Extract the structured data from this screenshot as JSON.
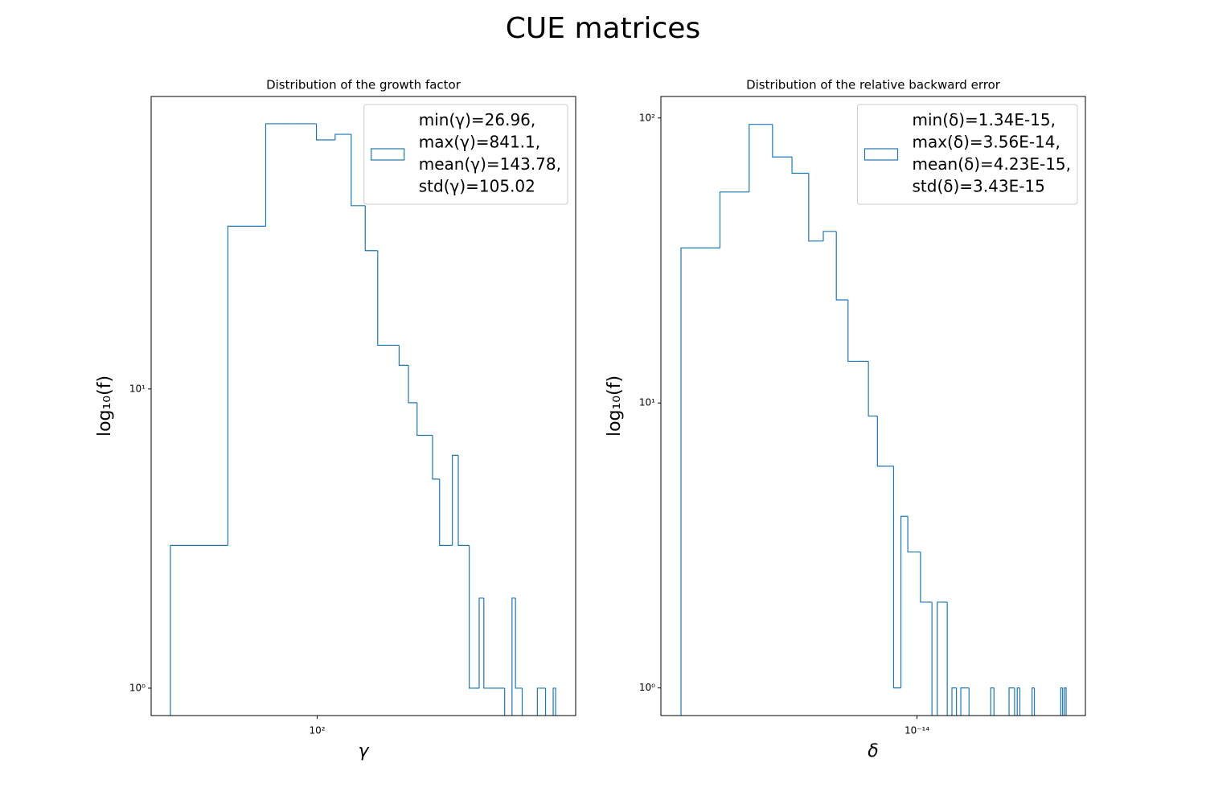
{
  "title": "CUE matrices",
  "chart_data": [
    {
      "type": "histogram",
      "title": "Distribution of the growth factor",
      "x_label": "γ",
      "y_label": "log₁₀(f)",
      "xscale": "log",
      "yscale": "log",
      "histtype": "step",
      "legend": "upper right",
      "grid": false,
      "xlim": [
        22.7,
        1006
      ],
      "ylim": [
        0.81,
        95
      ],
      "xticks": [
        {
          "value": 100,
          "label": "10²"
        }
      ],
      "yticks": [
        {
          "value": 1,
          "label": "10⁰"
        },
        {
          "value": 10,
          "label": "10¹"
        }
      ],
      "bins": [
        26.96,
        45.05,
        63.14,
        81.24,
        99.33,
        117.42,
        135.51,
        153.6,
        171.7,
        189.79,
        207.88,
        225.97,
        244.06,
        262.16,
        280.25,
        298.34,
        316.43,
        334.52,
        352.62,
        370.71,
        388.8,
        406.89,
        424.98,
        443.08,
        461.17,
        479.26,
        497.35,
        515.44,
        533.54,
        551.63,
        569.72,
        587.81,
        605.9,
        624.0,
        642.09,
        660.18,
        678.27,
        696.36,
        714.46,
        732.55,
        750.64,
        768.73,
        786.82,
        804.92,
        823.01,
        841.1
      ],
      "series": [
        {
          "name": "min(γ)=26.96,\nmax(γ)=841.1,\nmean(γ)=143.78,\nstd(γ)=105.02",
          "color": "#1f77b4",
          "values": [
            3,
            35,
            77,
            77,
            68,
            71,
            41,
            29,
            14,
            14,
            12,
            9,
            7,
            7,
            5,
            3,
            3,
            6,
            3,
            3,
            1,
            1,
            2,
            1,
            1,
            1,
            1,
            1,
            0,
            0,
            2,
            1,
            1,
            0,
            0,
            0,
            0,
            0,
            1,
            1,
            1,
            0,
            0,
            0,
            1
          ]
        }
      ]
    },
    {
      "type": "histogram",
      "title": "Distribution of the relative backward error",
      "x_label": "δ",
      "y_label": "log₁₀(f)",
      "xscale": "log",
      "yscale": "log",
      "histtype": "step",
      "legend": "upper right",
      "grid": false,
      "xlim": [
        1.129e-15,
        4.195e-14
      ],
      "ylim": [
        0.8,
        119
      ],
      "xticks": [
        {
          "value": 1e-14,
          "label": "10⁻¹⁴"
        }
      ],
      "yticks": [
        {
          "value": 1,
          "label": "10⁰"
        },
        {
          "value": 10,
          "label": "10¹"
        },
        {
          "value": 100,
          "label": "10²"
        }
      ],
      "bins": [
        1.34e-15,
        1.867e-15,
        2.394e-15,
        2.921e-15,
        3.448e-15,
        3.975e-15,
        4.502e-15,
        5.03e-15,
        5.557e-15,
        6.084e-15,
        6.611e-15,
        7.138e-15,
        7.665e-15,
        8.192e-15,
        8.719e-15,
        9.246e-15,
        9.773e-15,
        1.03e-14,
        1.0827e-14,
        1.1355e-14,
        1.1882e-14,
        1.2409e-14,
        1.2936e-14,
        1.3463e-14,
        1.399e-14,
        1.4517e-14,
        1.5044e-14,
        1.5571e-14,
        1.6098e-14,
        1.6625e-14,
        1.7152e-14,
        1.768e-14,
        1.8207e-14,
        1.8734e-14,
        1.9261e-14,
        1.9788e-14,
        2.0315e-14,
        2.0842e-14,
        2.1369e-14,
        2.1896e-14,
        2.2423e-14,
        2.295e-14,
        2.3477e-14,
        2.4004e-14,
        2.4531e-14,
        2.5058e-14,
        2.5585e-14,
        2.6113e-14,
        2.664e-14,
        2.7167e-14,
        2.7694e-14,
        2.8221e-14,
        2.8748e-14,
        2.9275e-14,
        2.9802e-14,
        3.0329e-14,
        3.0856e-14,
        3.1383e-14,
        3.191e-14,
        3.2438e-14,
        3.2965e-14,
        3.3492e-14,
        3.4019e-14,
        3.4546e-14,
        3.5073e-14,
        3.56e-14
      ],
      "series": [
        {
          "name": "min(δ)=1.34E-15,\nmax(δ)=3.56E-14,\nmean(δ)=4.23E-15,\nstd(δ)=3.43E-15",
          "color": "#1f77b4",
          "values": [
            35,
            55,
            95,
            73,
            64,
            37,
            40,
            23,
            14,
            14,
            9,
            6,
            6,
            1,
            4,
            3,
            3,
            2,
            2,
            0,
            2,
            2,
            0,
            1,
            0,
            1,
            1,
            0,
            0,
            0,
            0,
            0,
            0,
            1,
            0,
            0,
            0,
            0,
            0,
            1,
            1,
            0,
            1,
            0,
            0,
            0,
            0,
            0,
            1,
            0,
            0,
            0,
            0,
            0,
            0,
            0,
            0,
            0,
            0,
            0,
            0,
            0,
            1,
            0,
            1
          ]
        }
      ]
    }
  ]
}
